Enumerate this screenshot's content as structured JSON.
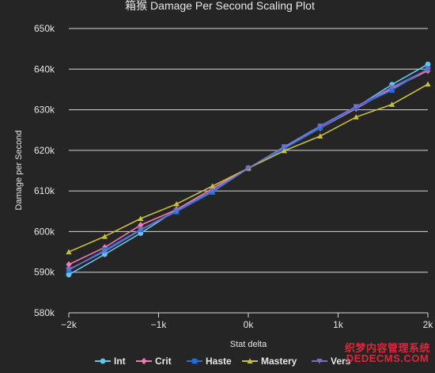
{
  "chart_data": {
    "type": "line",
    "title": "箱猴 Damage Per Second Scaling Plot",
    "xlabel": "Stat delta",
    "ylabel": "Damage per Second",
    "x": [
      -2000,
      -1600,
      -1200,
      -800,
      -400,
      0,
      400,
      800,
      1200,
      1600,
      2000
    ],
    "xlim": [
      -2000,
      2000
    ],
    "ylim": [
      580000,
      650000
    ],
    "x_ticks": [
      "−2k",
      "−1k",
      "0k",
      "1k",
      "2k"
    ],
    "x_tick_values": [
      -2000,
      -1000,
      0,
      1000,
      2000
    ],
    "y_ticks": [
      "580k",
      "590k",
      "600k",
      "610k",
      "620k",
      "630k",
      "640k",
      "650k"
    ],
    "y_tick_values": [
      580000,
      590000,
      600000,
      610000,
      620000,
      630000,
      640000,
      650000
    ],
    "grid": "horizontal",
    "legend_position": "bottom",
    "series": [
      {
        "name": "Int",
        "color": "#5ec8f2",
        "marker": "circle",
        "values": [
          589400,
          594400,
          599600,
          605300,
          610000,
          615600,
          620800,
          625600,
          630600,
          636200,
          641200
        ]
      },
      {
        "name": "Crit",
        "color": "#f07ab4",
        "marker": "diamond",
        "values": [
          591900,
          596100,
          601600,
          605400,
          610600,
          615600,
          620500,
          625500,
          630300,
          635200,
          639600
        ]
      },
      {
        "name": "Haste",
        "color": "#1e6fe0",
        "marker": "square",
        "values": [
          590500,
          595500,
          600500,
          604900,
          609700,
          615600,
          620400,
          625600,
          630600,
          634800,
          640100
        ]
      },
      {
        "name": "Mastery",
        "color": "#c9c040",
        "marker": "triangle",
        "values": [
          595000,
          598800,
          603200,
          606800,
          611200,
          615600,
          619900,
          623500,
          628200,
          631300,
          636300
        ]
      },
      {
        "name": "Vers",
        "color": "#7670c4",
        "marker": "triangle-down",
        "values": [
          590700,
          595100,
          600400,
          605200,
          610100,
          615600,
          620900,
          626000,
          630800,
          635500,
          639900
        ]
      }
    ]
  },
  "watermark": {
    "line1": "织梦内容管理系统",
    "line2": "DEDECMS.COM"
  }
}
